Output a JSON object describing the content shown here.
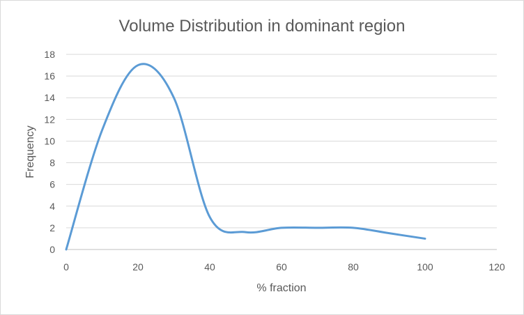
{
  "chart_data": {
    "type": "line",
    "title": "Volume Distribution in dominant region",
    "xlabel": "% fraction",
    "ylabel": "Frequency",
    "xlim": [
      0,
      120
    ],
    "ylim": [
      0,
      18
    ],
    "x_ticks": [
      0,
      20,
      40,
      60,
      80,
      100,
      120
    ],
    "y_ticks": [
      0,
      2,
      4,
      6,
      8,
      10,
      12,
      14,
      16,
      18
    ],
    "grid": true,
    "smoothed": true,
    "series": [
      {
        "color": "#5b9bd5",
        "x": [
          0,
          10,
          20,
          30,
          40,
          50,
          60,
          70,
          80,
          90,
          100
        ],
        "y": [
          0,
          11,
          17,
          14,
          3,
          1.6,
          2,
          2,
          2,
          1.5,
          1
        ]
      }
    ]
  }
}
